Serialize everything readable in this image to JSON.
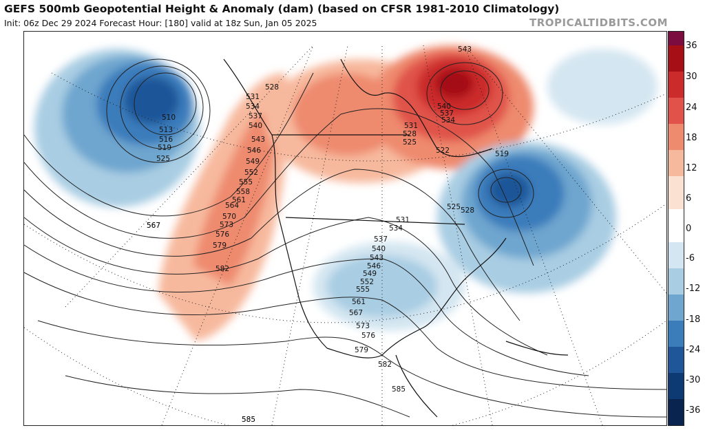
{
  "header": {
    "title": "GEFS 500mb Geopotential Height & Anomaly (dam) (based on CFSR 1981-2010 Climatology)",
    "subtitle": "Init: 06z Dec 29 2024   Forecast Hour: [180]   valid at 18z Sun, Jan 05 2025",
    "watermark": "TROPICALTIDBITS.COM"
  },
  "colorbar": {
    "labels": [
      "36",
      "30",
      "24",
      "18",
      "12",
      "6",
      "0",
      "-6",
      "-12",
      "-18",
      "-24",
      "-30",
      "-36"
    ],
    "colors": [
      "#7a0c3f",
      "#a50f15",
      "#cb2b2b",
      "#e0524a",
      "#ee8a6e",
      "#f7b99e",
      "#fbe1d2",
      "#ffffff",
      "#d4e6f1",
      "#a9cde3",
      "#6ea6cf",
      "#3b7cbb",
      "#1f5699",
      "#0e3a73",
      "#0a2450"
    ]
  },
  "contour_labels": [
    {
      "text": "510"
    },
    {
      "text": "513"
    },
    {
      "text": "516"
    },
    {
      "text": "519"
    },
    {
      "text": "525"
    },
    {
      "text": "528"
    },
    {
      "text": "531"
    },
    {
      "text": "534"
    },
    {
      "text": "537"
    },
    {
      "text": "540"
    },
    {
      "text": "543"
    },
    {
      "text": "546"
    },
    {
      "text": "549"
    },
    {
      "text": "552"
    },
    {
      "text": "555"
    },
    {
      "text": "558"
    },
    {
      "text": "561"
    },
    {
      "text": "564"
    },
    {
      "text": "567"
    },
    {
      "text": "570"
    },
    {
      "text": "573"
    },
    {
      "text": "576"
    },
    {
      "text": "579"
    },
    {
      "text": "582"
    },
    {
      "text": "585"
    },
    {
      "text": "543"
    },
    {
      "text": "540"
    },
    {
      "text": "537"
    },
    {
      "text": "534"
    },
    {
      "text": "531"
    },
    {
      "text": "528"
    },
    {
      "text": "525"
    },
    {
      "text": "522"
    },
    {
      "text": "519"
    },
    {
      "text": "525"
    },
    {
      "text": "528"
    },
    {
      "text": "531"
    },
    {
      "text": "534"
    },
    {
      "text": "537"
    },
    {
      "text": "540"
    },
    {
      "text": "543"
    },
    {
      "text": "546"
    },
    {
      "text": "549"
    },
    {
      "text": "552"
    },
    {
      "text": "555"
    },
    {
      "text": "561"
    },
    {
      "text": "567"
    },
    {
      "text": "573"
    },
    {
      "text": "576"
    },
    {
      "text": "579"
    },
    {
      "text": "582"
    },
    {
      "text": "585"
    },
    {
      "text": "567"
    },
    {
      "text": "585"
    }
  ]
}
